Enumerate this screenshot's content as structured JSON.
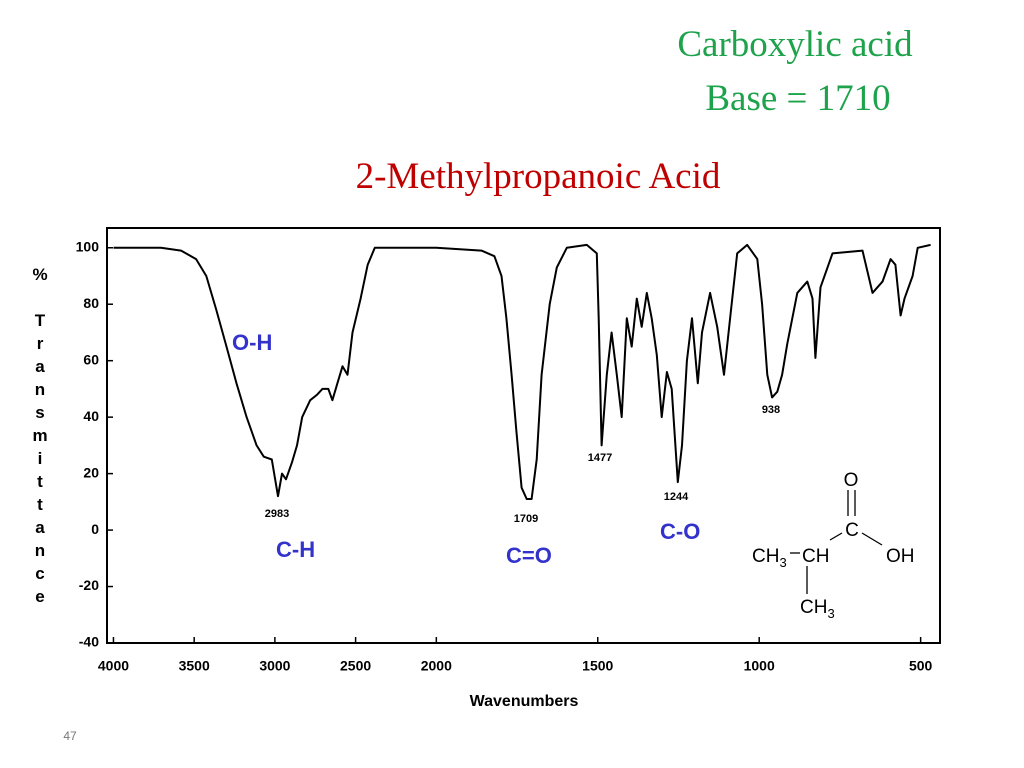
{
  "slide": {
    "heading": [
      "Carboxylic acid",
      "Base = 1710"
    ],
    "page_number": "47"
  },
  "chart_data": {
    "type": "line",
    "title": "2-Methylpropanoic Acid",
    "x_label": "Wavenumbers",
    "y_label": "% Transmittance",
    "color": "#000000",
    "xlim": [
      4040,
      440
    ],
    "x_scale_break": 2000,
    "xticks": [
      4000,
      3500,
      3000,
      2500,
      2000,
      1500,
      1000,
      500
    ],
    "ylim": [
      -40,
      107
    ],
    "yticks": [
      100,
      80,
      60,
      40,
      20,
      0,
      -20,
      -40
    ],
    "x": [
      4000,
      3706,
      3581,
      3488,
      3425,
      3363,
      3300,
      3238,
      3175,
      3113,
      3069,
      3019,
      2981,
      2956,
      2931,
      2894,
      2863,
      2831,
      2781,
      2738,
      2706,
      2669,
      2644,
      2613,
      2581,
      2550,
      2519,
      2469,
      2425,
      2381,
      2206,
      2000,
      1860,
      1820,
      1798,
      1783,
      1767,
      1752,
      1736,
      1720,
      1705,
      1689,
      1674,
      1649,
      1627,
      1596,
      1534,
      1503,
      1497,
      1488,
      1472,
      1457,
      1441,
      1426,
      1410,
      1395,
      1379,
      1364,
      1348,
      1333,
      1317,
      1302,
      1286,
      1271,
      1252,
      1239,
      1224,
      1208,
      1190,
      1177,
      1152,
      1130,
      1109,
      1090,
      1068,
      1037,
      1006,
      991,
      975,
      960,
      944,
      929,
      913,
      882,
      851,
      835,
      826,
      810,
      773,
      680,
      649,
      618,
      593,
      578,
      562,
      550,
      525,
      509,
      469
    ],
    "values": [
      100,
      100,
      99,
      96,
      90,
      78,
      65,
      52,
      40,
      30,
      26,
      25,
      12,
      20,
      18,
      24,
      30,
      40,
      46,
      48,
      50,
      50,
      46,
      52,
      58,
      55,
      70,
      82,
      94,
      100,
      100,
      100,
      99,
      97,
      90,
      75,
      55,
      35,
      15,
      11,
      11,
      25,
      55,
      80,
      93,
      100,
      101,
      98,
      75,
      30,
      55,
      70,
      55,
      40,
      75,
      65,
      82,
      72,
      84,
      75,
      62,
      40,
      56,
      50,
      17,
      30,
      60,
      75,
      52,
      70,
      84,
      72,
      55,
      75,
      98,
      101,
      96,
      80,
      55,
      47,
      49,
      55,
      66,
      84,
      88,
      82,
      61,
      86,
      98,
      99,
      84,
      88,
      96,
      94,
      76,
      82,
      90,
      100,
      101
    ],
    "peak_labels": [
      2983,
      1709,
      1477,
      1244,
      938
    ],
    "group_labels": [
      "O-H",
      "C-H",
      "C=O",
      "C-O"
    ]
  },
  "molecule": {
    "labels": [
      "O",
      "C",
      "CH3",
      "CH",
      "OH",
      "CH3"
    ]
  }
}
